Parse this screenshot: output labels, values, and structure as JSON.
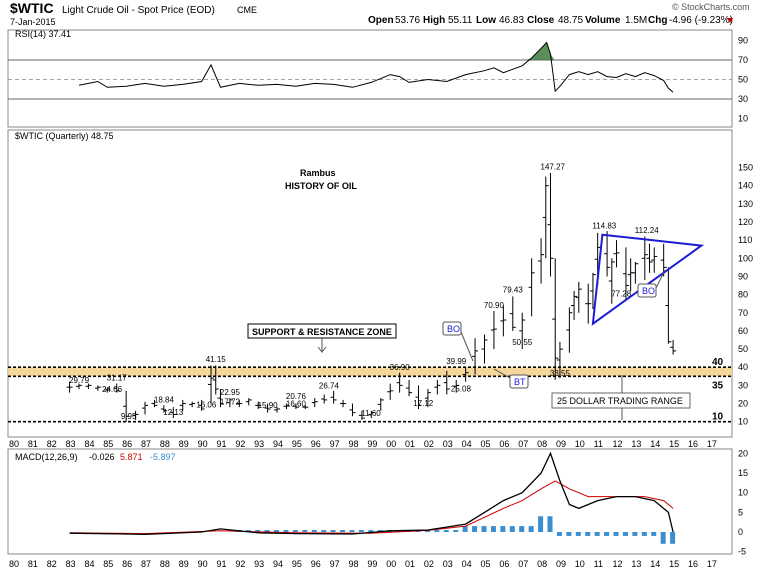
{
  "header": {
    "symbol": "$WTIC",
    "name": "Light Crude Oil - Spot Price (EOD)",
    "exchange": "CME",
    "date": "7-Jan-2015",
    "copyright": "© StockCharts.com",
    "open_label": "Open",
    "open": "53.76",
    "high_label": "High",
    "high": "55.11",
    "low_label": "Low",
    "low": "46.83",
    "close_label": "Close",
    "close": "48.75",
    "volume_label": "Volume",
    "volume": "1.5M",
    "chg_label": "Chg",
    "chg": "-4.96 (-9.23%)",
    "down_color": "#cc0000"
  },
  "rsi": {
    "label": "RSI(14) 37.41",
    "ticks": [
      "90",
      "70",
      "50",
      "30",
      "10"
    ],
    "values": [
      [
        1983.5,
        44
      ],
      [
        1984.5,
        48
      ],
      [
        1985,
        42
      ],
      [
        1986,
        43
      ],
      [
        1987,
        46
      ],
      [
        1988,
        43
      ],
      [
        1989,
        45
      ],
      [
        1990,
        48
      ],
      [
        1990.5,
        65
      ],
      [
        1991,
        42
      ],
      [
        1992,
        46
      ],
      [
        1993,
        44
      ],
      [
        1994,
        45
      ],
      [
        1995,
        43
      ],
      [
        1996,
        46
      ],
      [
        1997,
        45
      ],
      [
        1998,
        42
      ],
      [
        1999,
        47
      ],
      [
        2000,
        55
      ],
      [
        2000.5,
        53
      ],
      [
        2001,
        47
      ],
      [
        2002,
        50
      ],
      [
        2003,
        48
      ],
      [
        2004,
        55
      ],
      [
        2005,
        59
      ],
      [
        2005.5,
        62
      ],
      [
        2006,
        57
      ],
      [
        2007,
        64
      ],
      [
        2007.5,
        72
      ],
      [
        2008,
        82
      ],
      [
        2008.3,
        88
      ],
      [
        2008.5,
        76
      ],
      [
        2008.75,
        38
      ],
      [
        2009,
        43
      ],
      [
        2009.5,
        55
      ],
      [
        2010,
        58
      ],
      [
        2010.5,
        55
      ],
      [
        2011,
        58
      ],
      [
        2011.5,
        53
      ],
      [
        2012,
        52
      ],
      [
        2012.5,
        56
      ],
      [
        2013,
        53
      ],
      [
        2013.5,
        57
      ],
      [
        2014,
        54
      ],
      [
        2014.5,
        49
      ],
      [
        2014.75,
        41
      ],
      [
        2015,
        37
      ]
    ],
    "overbought_color": "#3e7a3e"
  },
  "main": {
    "label": "$WTIC (Quarterly) 48.75",
    "title_line1": "Rambus",
    "title_line2": "HISTORY OF OIL",
    "price_ticks": [
      "150",
      "140",
      "130",
      "120",
      "110",
      "100",
      "90",
      "80",
      "70",
      "60",
      "50",
      "40",
      "30",
      "20",
      "10"
    ],
    "support_label": "SUPPORT & RESISTANCE ZONE",
    "range_label": "25 DOLLAR TRADING RANGE",
    "level_40": "40",
    "level_35": "35",
    "level_10": "10",
    "bo_label_1": "BO",
    "bo_label_2": "BO",
    "bt_label": "BT",
    "peak_labels": [
      {
        "text": "147.27",
        "x": 2008.5,
        "y": 147.27
      },
      {
        "text": "114.83",
        "x": 2011.25,
        "y": 114.83
      },
      {
        "text": "112.24",
        "x": 2013.5,
        "y": 112.24
      },
      {
        "text": "79.43",
        "x": 2006.5,
        "y": 79.43
      },
      {
        "text": "70.90",
        "x": 2005.5,
        "y": 70.9
      },
      {
        "text": "77.28",
        "x": 2012.25,
        "y": 77.28
      },
      {
        "text": "50.55",
        "x": 2007,
        "y": 50.55
      },
      {
        "text": "33.55",
        "x": 2009,
        "y": 33.55
      },
      {
        "text": "41.15",
        "x": 1990.75,
        "y": 41.15
      },
      {
        "text": "36.90",
        "x": 2000.5,
        "y": 36.9
      },
      {
        "text": "39.99",
        "x": 2003.5,
        "y": 39.99
      },
      {
        "text": "31.17",
        "x": 1985.5,
        "y": 31.17
      },
      {
        "text": "29.79",
        "x": 1983.5,
        "y": 29.79
      },
      {
        "text": "26.74",
        "x": 1996.75,
        "y": 26.74
      },
      {
        "text": "24.66",
        "x": 1985.25,
        "y": 24.66
      },
      {
        "text": "25.08",
        "x": 2003.75,
        "y": 25.08
      },
      {
        "text": "22.95",
        "x": 1991.5,
        "y": 22.95
      },
      {
        "text": "20.76",
        "x": 1995,
        "y": 20.76
      },
      {
        "text": "18.84",
        "x": 1988,
        "y": 18.84
      },
      {
        "text": "17.72",
        "x": 1991.5,
        "y": 17.72
      },
      {
        "text": "17.12",
        "x": 2001.75,
        "y": 17.12
      },
      {
        "text": "16.60",
        "x": 1995,
        "y": 16.6
      },
      {
        "text": "16.06",
        "x": 1990.25,
        "y": 16.06
      },
      {
        "text": "15.90",
        "x": 1993.5,
        "y": 15.9
      },
      {
        "text": "12.13",
        "x": 1988.5,
        "y": 12.13
      },
      {
        "text": "11.60",
        "x": 1999,
        "y": 11.6
      },
      {
        "text": "9.95",
        "x": 1986.25,
        "y": 9.95
      }
    ]
  },
  "macd": {
    "label": "MACD(12,26,9)",
    "macd_value": "-0.026",
    "signal_value": "5.871",
    "hist_value": "-5.897",
    "macd_color": "#000000",
    "signal_color": "#cc0000",
    "hist_color": "#3a8ecf",
    "ticks": [
      "20",
      "15",
      "10",
      "5",
      "0",
      "-5"
    ]
  },
  "x_axis": {
    "ticks": [
      "80",
      "81",
      "82",
      "83",
      "84",
      "85",
      "86",
      "87",
      "88",
      "89",
      "90",
      "91",
      "92",
      "93",
      "94",
      "95",
      "96",
      "97",
      "98",
      "99",
      "00",
      "01",
      "02",
      "03",
      "04",
      "05",
      "06",
      "07",
      "08",
      "09",
      "10",
      "11",
      "12",
      "13",
      "14",
      "15",
      "16",
      "17"
    ]
  },
  "chart_data": {
    "type": "ohlc",
    "title": "HISTORY OF OIL",
    "xlabel": "",
    "ylabel": "",
    "ylim": [
      0,
      155
    ],
    "x_range": [
      1980,
      2017
    ],
    "annotations": {
      "support_zone": [
        35,
        40
      ],
      "support_line": 10,
      "triangle_apex": [
        2016.5,
        107
      ]
    },
    "series": [
      {
        "name": "$WTIC (Quarterly)",
        "bars": [
          [
            1983.0,
            32,
            26,
            29
          ],
          [
            1983.5,
            31,
            28,
            30
          ],
          [
            1984.0,
            31,
            28,
            30
          ],
          [
            1984.5,
            30,
            27,
            29
          ],
          [
            1985.0,
            29,
            26,
            28
          ],
          [
            1985.5,
            31,
            26,
            27
          ],
          [
            1986.0,
            27,
            10,
            13
          ],
          [
            1986.5,
            16,
            11,
            14
          ],
          [
            1987.0,
            21,
            14,
            19
          ],
          [
            1987.5,
            22,
            18,
            19
          ],
          [
            1988.0,
            19,
            15,
            16
          ],
          [
            1988.5,
            18,
            12,
            14
          ],
          [
            1989.0,
            22,
            16,
            20
          ],
          [
            1989.5,
            21,
            18,
            20
          ],
          [
            1990.0,
            22,
            16,
            17
          ],
          [
            1990.5,
            41,
            20,
            34
          ],
          [
            1990.75,
            41,
            25,
            28
          ],
          [
            1991.0,
            28,
            18,
            20
          ],
          [
            1991.5,
            23,
            18,
            22
          ],
          [
            1992.0,
            22,
            18,
            20
          ],
          [
            1992.5,
            23,
            19,
            22
          ],
          [
            1993.0,
            21,
            17,
            19
          ],
          [
            1993.5,
            20,
            15,
            17
          ],
          [
            1994.0,
            18,
            15,
            17
          ],
          [
            1994.5,
            20,
            17,
            19
          ],
          [
            1995.0,
            20,
            17,
            18
          ],
          [
            1995.5,
            19,
            17,
            18
          ],
          [
            1996.0,
            23,
            18,
            21
          ],
          [
            1996.5,
            25,
            20,
            22
          ],
          [
            1997.0,
            27,
            20,
            22
          ],
          [
            1997.5,
            22,
            18,
            20
          ],
          [
            1998.0,
            20,
            13,
            15
          ],
          [
            1998.5,
            16,
            11,
            12
          ],
          [
            1999.0,
            16,
            12,
            15
          ],
          [
            1999.5,
            23,
            16,
            22
          ],
          [
            2000.0,
            31,
            22,
            27
          ],
          [
            2000.5,
            37,
            26,
            30
          ],
          [
            2001.0,
            33,
            24,
            26
          ],
          [
            2001.5,
            30,
            17,
            19
          ],
          [
            2002.0,
            28,
            18,
            26
          ],
          [
            2002.5,
            33,
            25,
            30
          ],
          [
            2003.0,
            38,
            25,
            28
          ],
          [
            2003.5,
            33,
            26,
            30
          ],
          [
            2004.0,
            40,
            32,
            37
          ],
          [
            2004.5,
            56,
            36,
            49
          ],
          [
            2005.0,
            58,
            42,
            55
          ],
          [
            2005.5,
            71,
            50,
            61
          ],
          [
            2006.0,
            74,
            57,
            66
          ],
          [
            2006.5,
            79,
            60,
            62
          ],
          [
            2007.0,
            70,
            50,
            66
          ],
          [
            2007.5,
            100,
            68,
            92
          ],
          [
            2008.0,
            111,
            86,
            102
          ],
          [
            2008.25,
            145,
            100,
            140
          ],
          [
            2008.5,
            147,
            90,
            100
          ],
          [
            2008.75,
            100,
            33,
            45
          ],
          [
            2009.0,
            54,
            34,
            50
          ],
          [
            2009.5,
            73,
            48,
            70
          ],
          [
            2009.75,
            82,
            66,
            79
          ],
          [
            2010.0,
            87,
            70,
            83
          ],
          [
            2010.5,
            86,
            64,
            75
          ],
          [
            2010.75,
            92,
            72,
            91
          ],
          [
            2011.0,
            114,
            85,
            106
          ],
          [
            2011.5,
            115,
            90,
            95
          ],
          [
            2011.75,
            100,
            75,
            98
          ],
          [
            2012.0,
            110,
            95,
            103
          ],
          [
            2012.5,
            106,
            77,
            85
          ],
          [
            2012.75,
            100,
            82,
            92
          ],
          [
            2013.0,
            98,
            86,
            97
          ],
          [
            2013.5,
            112,
            88,
            102
          ],
          [
            2013.75,
            108,
            92,
            98
          ],
          [
            2014.0,
            106,
            92,
            101
          ],
          [
            2014.5,
            108,
            90,
            95
          ],
          [
            2014.75,
            95,
            53,
            54
          ],
          [
            2015.0,
            55,
            47,
            49
          ]
        ]
      }
    ]
  }
}
